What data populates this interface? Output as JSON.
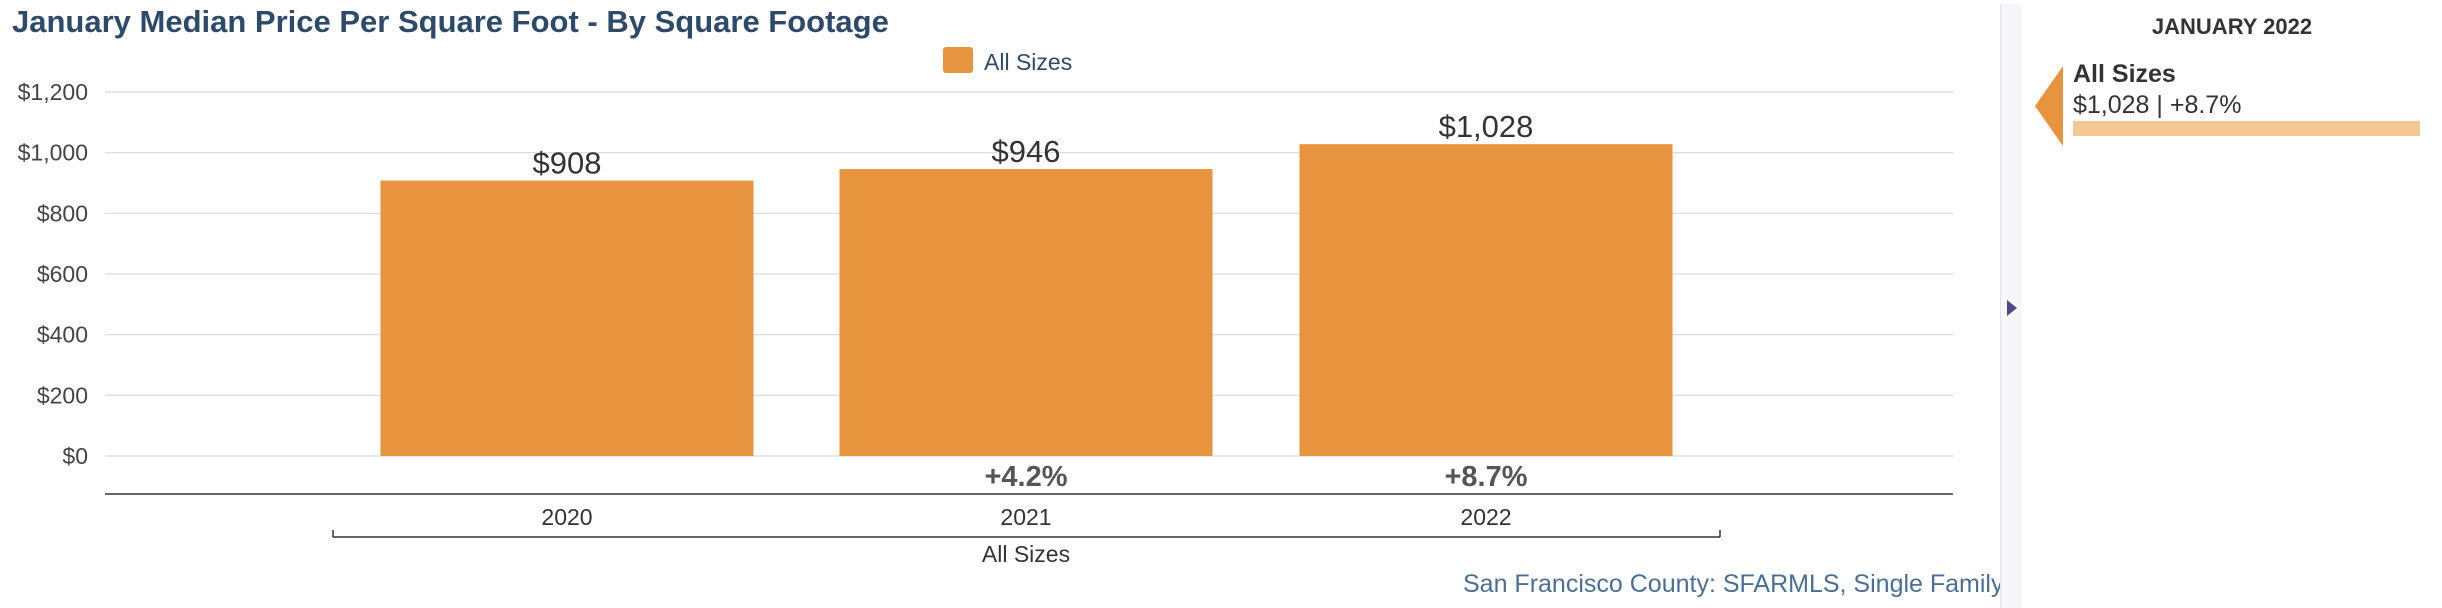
{
  "title": "January Median Price Per Square Foot - By Square Footage",
  "source": "San Francisco County: SFARMLS, Single Family",
  "colors": {
    "bar": "#e8933e",
    "title": "#2e4a6b",
    "source": "#4a6f96",
    "grid": "#d9d9d9",
    "panel_bar": "#f3c792"
  },
  "chart_data": {
    "type": "bar",
    "title": "January Median Price Per Square Foot - By Square Footage",
    "categories": [
      "2020",
      "2021",
      "2022"
    ],
    "group_label": "All Sizes",
    "series": [
      {
        "name": "All Sizes",
        "values": [
          908,
          946,
          1028
        ],
        "data_labels": [
          "$908",
          "$946",
          "$1,028"
        ],
        "change_labels": [
          "",
          "+4.2%",
          "+8.7%"
        ],
        "color": "#e8933e"
      }
    ],
    "ylim": [
      0,
      1200
    ],
    "yticks": [
      0,
      200,
      400,
      600,
      800,
      1000,
      1200
    ],
    "ytick_labels": [
      "$0",
      "$200",
      "$400",
      "$600",
      "$800",
      "$1,000",
      "$1,200"
    ],
    "grid": true,
    "legend": {
      "position": "top-center",
      "entries": [
        "All Sizes"
      ]
    }
  },
  "side_panel": {
    "title": "JANUARY 2022",
    "item": {
      "name": "All Sizes",
      "value_text": "$1,028 | +8.7%",
      "bar_fraction": 1.0
    },
    "toggle_icon": "caret-right-icon"
  }
}
